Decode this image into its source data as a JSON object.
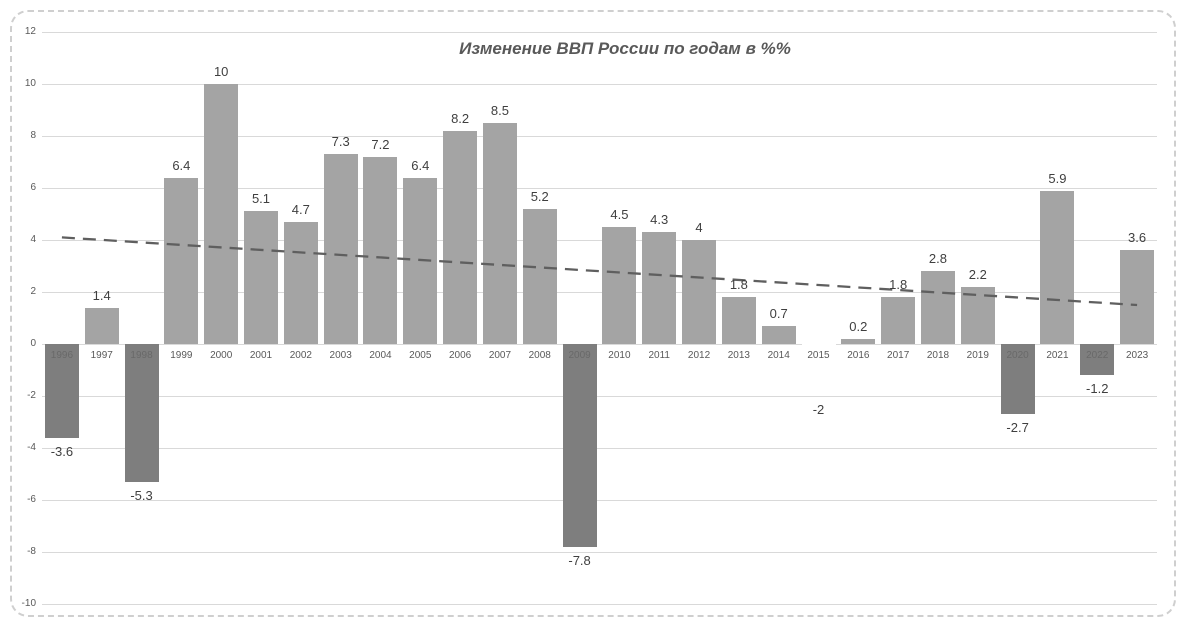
{
  "chart_data": {
    "type": "bar",
    "title": "Изменение ВВП России по годам в %%",
    "categories": [
      "1996",
      "1997",
      "1998",
      "1999",
      "2000",
      "2001",
      "2002",
      "2003",
      "2004",
      "2005",
      "2006",
      "2007",
      "2008",
      "2009",
      "2010",
      "2011",
      "2012",
      "2013",
      "2014",
      "2015",
      "2016",
      "2017",
      "2018",
      "2019",
      "2020",
      "2021",
      "2022",
      "2023"
    ],
    "values": [
      -3.6,
      1.4,
      -5.3,
      6.4,
      10,
      5.1,
      4.7,
      7.3,
      7.2,
      6.4,
      8.2,
      8.5,
      5.2,
      -7.8,
      4.5,
      4.3,
      4,
      1.8,
      0.7,
      -2,
      0.2,
      1.8,
      2.8,
      2.2,
      -2.7,
      5.9,
      -1.2,
      3.6
    ],
    "value_labels": [
      "-3.6",
      "1.4",
      "-5.3",
      "6.4",
      "10",
      "5.1",
      "4.7",
      "7.3",
      "7.2",
      "6.4",
      "8.2",
      "8.5",
      "5.2",
      "-7.8",
      "4.5",
      "4.3",
      "4",
      "1.8",
      "0.7",
      "-2",
      "0.2",
      "1.8",
      "2.8",
      "2.2",
      "-2.7",
      "5.9",
      "-1.2",
      "3.6"
    ],
    "xlabel": "",
    "ylabel": "",
    "y_axis": {
      "min": -10,
      "max": 12,
      "tick_step": 2,
      "tick_labels": [
        "12",
        "10",
        "8",
        "6",
        "4",
        "2",
        "0",
        "-2",
        "-4",
        "-6",
        "-8",
        "-10"
      ]
    },
    "grid": "horizontal",
    "legend": "none",
    "trendline": {
      "type": "linear",
      "style": "dashed",
      "start_value": 4.1,
      "end_value": 1.5
    },
    "invisible_bar_category": "2015",
    "colors": {
      "positive_bar": "#a4a4a4",
      "negative_bar": "#7e7e7e",
      "invisible_bar": "#ffffff",
      "gridline": "#d9d9d9",
      "title": "#595959",
      "value_label": "#3f3f3f",
      "tick_label": "#595959",
      "year_label": "#595959",
      "year_label_in_bar": "#696969",
      "trendline": "#5f5f5f",
      "frame_border": "#cfcfcf"
    }
  }
}
